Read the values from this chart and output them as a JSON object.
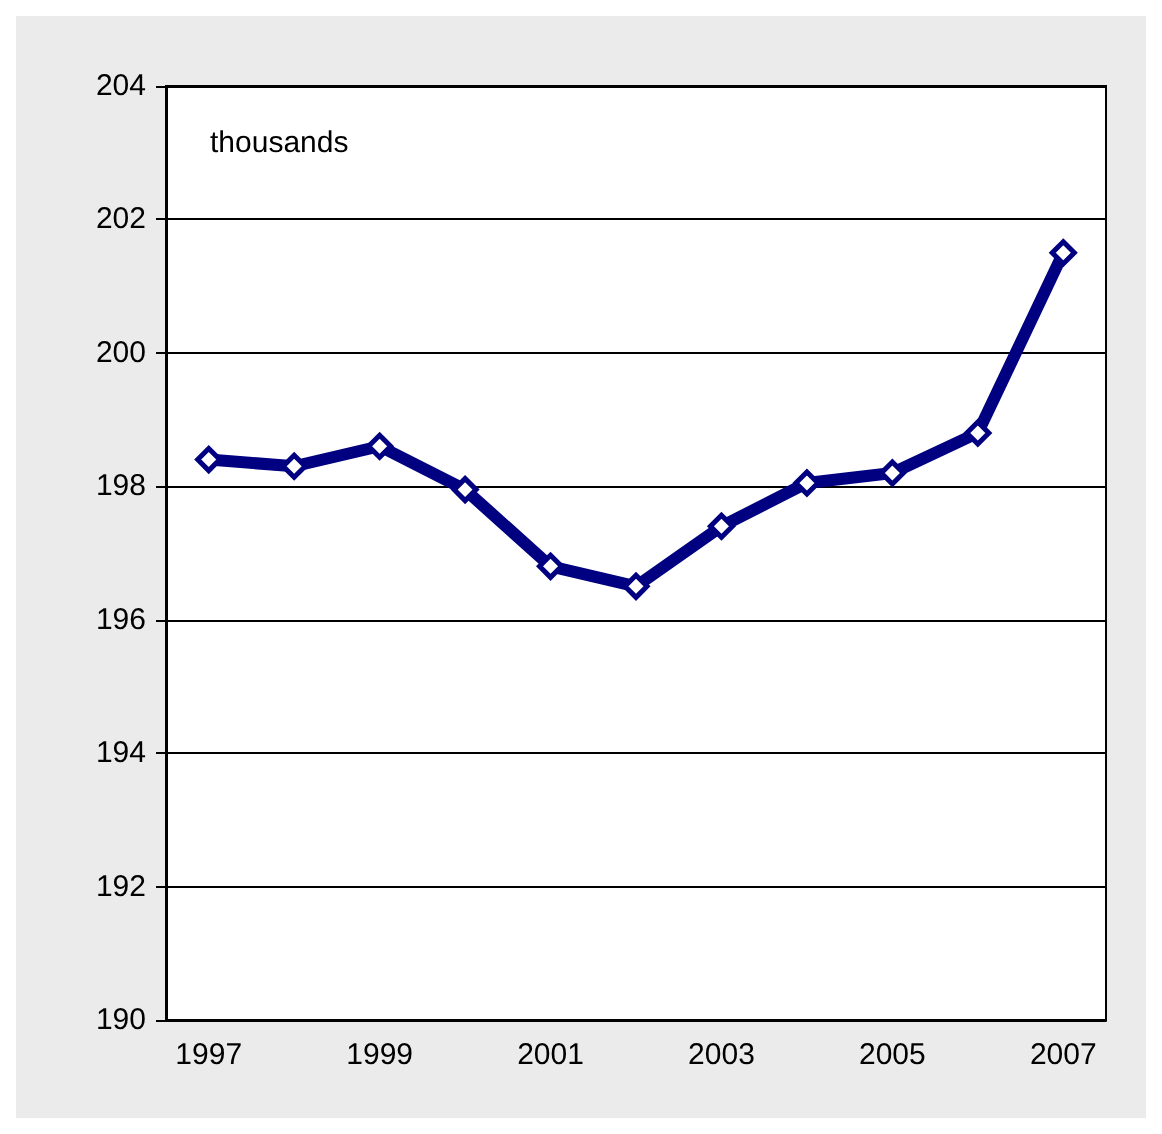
{
  "chart_data": {
    "type": "line",
    "categories": [
      "1997",
      null,
      "1999",
      null,
      "2001",
      null,
      "2003",
      null,
      "2005",
      null,
      "2007"
    ],
    "series": [
      {
        "color": "#000080",
        "values": [
          198.4,
          198.3,
          198.6,
          197.95,
          196.8,
          196.5,
          197.4,
          198.05,
          198.2,
          198.8,
          201.5
        ]
      }
    ],
    "ylim": [
      190,
      204
    ],
    "yticks": [
      190,
      192,
      194,
      196,
      198,
      200,
      202,
      204
    ],
    "annotations": [
      "thousands"
    ],
    "grid": "y",
    "marker": "diamond",
    "line_style": "solid"
  }
}
